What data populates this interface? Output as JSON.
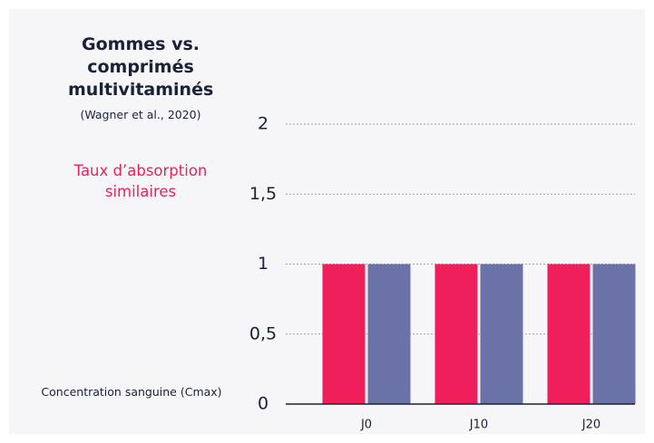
{
  "chart_data": {
    "type": "bar",
    "title": "Gommes vs. comprimés multivitaminés",
    "subtitle": "(Wagner et al., 2020)",
    "annotation": "Taux d’absorption similaires",
    "y_axis_label": "Concentration sanguine (Cmax)",
    "categories": [
      "J0",
      "J10",
      "J20"
    ],
    "series": [
      {
        "color": "#ee1f5a",
        "values": [
          1,
          1,
          1
        ]
      },
      {
        "color": "#6b72a8",
        "values": [
          1,
          1,
          1
        ]
      }
    ],
    "ylim": [
      0,
      2
    ],
    "yticks": [
      0,
      {
        "value": 0.5,
        "label": "0,5"
      },
      1,
      {
        "value": 1.5,
        "label": "1,5"
      },
      2
    ],
    "grid": true
  }
}
